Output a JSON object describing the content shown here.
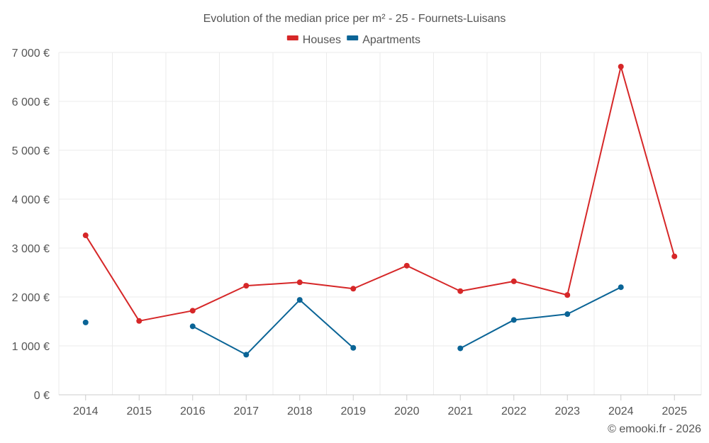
{
  "chart_data": {
    "type": "line",
    "title": "Evolution of the median price per m² - 25 - Fournets-Luisans",
    "categories": [
      "2014",
      "2015",
      "2016",
      "2017",
      "2018",
      "2019",
      "2020",
      "2021",
      "2022",
      "2023",
      "2024",
      "2025"
    ],
    "series": [
      {
        "name": "Houses",
        "color": "#d62728",
        "values": [
          3260,
          1510,
          1720,
          2230,
          2300,
          2170,
          2640,
          2120,
          2320,
          2040,
          6710,
          2830
        ]
      },
      {
        "name": "Apartments",
        "color": "#0a6496",
        "values": [
          1480,
          null,
          1400,
          820,
          1940,
          960,
          null,
          950,
          1530,
          1650,
          2200,
          null
        ]
      }
    ],
    "ylim": [
      0,
      7000
    ],
    "yticks": [
      0,
      1000,
      2000,
      3000,
      4000,
      5000,
      6000,
      7000
    ],
    "ytick_labels": [
      "0 €",
      "1 000 €",
      "2 000 €",
      "3 000 €",
      "4 000 €",
      "5 000 €",
      "6 000 €",
      "7 000 €"
    ],
    "xlabel": "",
    "ylabel": "",
    "grid": true,
    "legend_position": "top-center"
  },
  "credit": "© emooki.fr - 2026"
}
